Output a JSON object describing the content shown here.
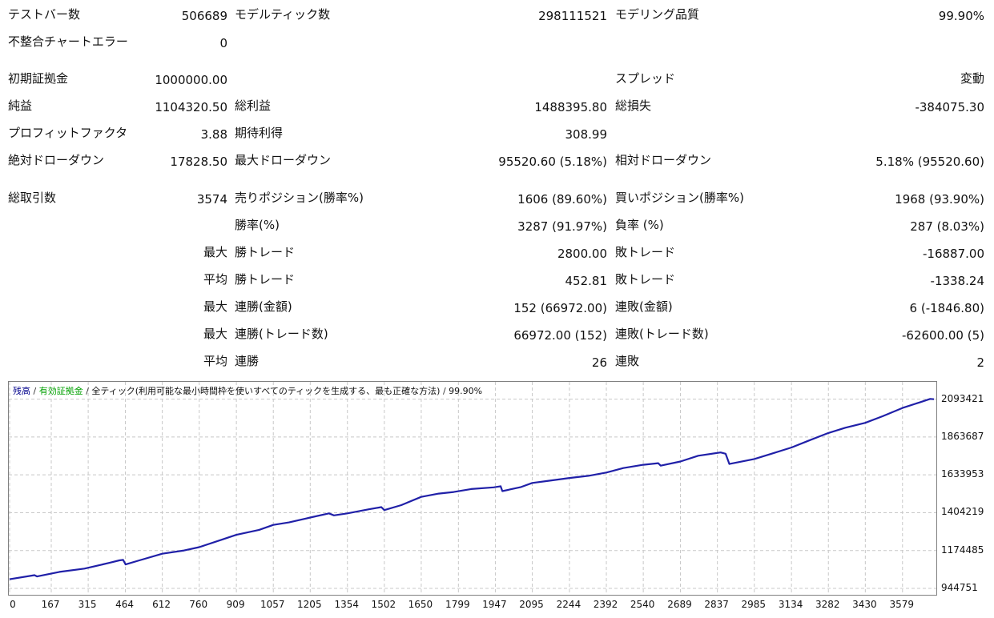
{
  "colors": {
    "balance_line": "#2020a8",
    "grid": "#c8c8c8",
    "legend_balance": "#00008b",
    "legend_equity": "#00a000"
  },
  "stats": {
    "test_bars": {
      "label": "テストバー数",
      "value": "506689"
    },
    "model_ticks": {
      "label": "モデルティック数",
      "value": "298111521"
    },
    "model_quality": {
      "label": "モデリング品質",
      "value": "99.90%"
    },
    "mismatch_errors": {
      "label": "不整合チャートエラー",
      "value": "0"
    },
    "initial_deposit": {
      "label": "初期証拠金",
      "value": "1000000.00"
    },
    "spread": {
      "label": "スプレッド",
      "value": "変動"
    },
    "net_profit": {
      "label": "純益",
      "value": "1104320.50"
    },
    "gross_profit": {
      "label": "総利益",
      "value": "1488395.80"
    },
    "gross_loss": {
      "label": "総損失",
      "value": "-384075.30"
    },
    "profit_factor": {
      "label": "プロフィットファクタ",
      "value": "3.88"
    },
    "expected_payoff": {
      "label": "期待利得",
      "value": "308.99"
    },
    "abs_drawdown": {
      "label": "絶対ドローダウン",
      "value": "17828.50"
    },
    "max_drawdown": {
      "label": "最大ドローダウン",
      "value": "95520.60 (5.18%)"
    },
    "rel_drawdown": {
      "label": "相対ドローダウン",
      "value": "5.18% (95520.60)"
    },
    "total_trades": {
      "label": "総取引数",
      "value": "3574"
    },
    "short_positions": {
      "label": "売りポジション(勝率%)",
      "value": "1606 (89.60%)"
    },
    "long_positions": {
      "label": "買いポジション(勝率%)",
      "value": "1968 (93.90%)"
    },
    "profit_trades": {
      "label": "勝率(%)",
      "value": "3287 (91.97%)"
    },
    "loss_trades": {
      "label": "負率 (%)",
      "value": "287 (8.03%)"
    },
    "largest_label": "最大",
    "largest_profit": {
      "label": "勝トレード",
      "value": "2800.00"
    },
    "largest_loss": {
      "label": "敗トレード",
      "value": "-16887.00"
    },
    "average_label": "平均",
    "average_profit": {
      "label": "勝トレード",
      "value": "452.81"
    },
    "average_loss": {
      "label": "敗トレード",
      "value": "-1338.24"
    },
    "max_label_1": "最大",
    "max_consec_wins_money": {
      "label": "連勝(金額)",
      "value": "152 (66972.00)"
    },
    "max_consec_losses_money": {
      "label": "連敗(金額)",
      "value": "6 (-1846.80)"
    },
    "max_label_2": "最大",
    "max_consec_wins_count": {
      "label": "連勝(トレード数)",
      "value": "66972.00 (152)"
    },
    "max_consec_losses_count": {
      "label": "連敗(トレード数)",
      "value": "-62600.00 (5)"
    },
    "avg_label_2": "平均",
    "avg_consec_wins": {
      "label": "連勝",
      "value": "26"
    },
    "avg_consec_losses": {
      "label": "連敗",
      "value": "2"
    }
  },
  "chart_legend": {
    "balance": "残高",
    "equity": "有効証拠金",
    "sep1": " / ",
    "model": "全ティック(利用可能な最小時間枠を使いすべてのティックを生成する、最も正確な方法)",
    "sep2": " / ",
    "quality": "99.90%"
  },
  "chart_data": {
    "type": "line",
    "title": "",
    "xlabel": "",
    "ylabel": "",
    "y_ticks": [
      "2093421",
      "1863687",
      "1633953",
      "1404219",
      "1174485",
      "944751"
    ],
    "x_ticks": [
      "0",
      "167",
      "315",
      "464",
      "612",
      "760",
      "909",
      "1057",
      "1205",
      "1354",
      "1502",
      "1650",
      "1799",
      "1947",
      "2095",
      "2244",
      "2392",
      "2540",
      "2689",
      "2837",
      "2985",
      "3134",
      "3282",
      "3430",
      "3579"
    ],
    "ylim": [
      944751,
      2150000
    ],
    "xlim": [
      0,
      3705
    ],
    "grid": true,
    "series": [
      {
        "values": [
          [
            0,
            1000000
          ],
          [
            100,
            1025000
          ],
          [
            110,
            1017000
          ],
          [
            200,
            1045000
          ],
          [
            300,
            1065000
          ],
          [
            400,
            1100000
          ],
          [
            440,
            1115000
          ],
          [
            455,
            1118000
          ],
          [
            465,
            1090000
          ],
          [
            520,
            1115000
          ],
          [
            612,
            1155000
          ],
          [
            700,
            1175000
          ],
          [
            760,
            1195000
          ],
          [
            850,
            1240000
          ],
          [
            909,
            1270000
          ],
          [
            1000,
            1300000
          ],
          [
            1057,
            1330000
          ],
          [
            1120,
            1345000
          ],
          [
            1205,
            1375000
          ],
          [
            1280,
            1400000
          ],
          [
            1300,
            1388000
          ],
          [
            1354,
            1400000
          ],
          [
            1440,
            1425000
          ],
          [
            1490,
            1438000
          ],
          [
            1502,
            1420000
          ],
          [
            1570,
            1450000
          ],
          [
            1650,
            1500000
          ],
          [
            1720,
            1520000
          ],
          [
            1780,
            1530000
          ],
          [
            1850,
            1548000
          ],
          [
            1940,
            1558000
          ],
          [
            1968,
            1565000
          ],
          [
            1975,
            1535000
          ],
          [
            2050,
            1560000
          ],
          [
            2095,
            1585000
          ],
          [
            2160,
            1598000
          ],
          [
            2244,
            1615000
          ],
          [
            2320,
            1628000
          ],
          [
            2392,
            1648000
          ],
          [
            2460,
            1675000
          ],
          [
            2540,
            1695000
          ],
          [
            2600,
            1705000
          ],
          [
            2610,
            1690000
          ],
          [
            2689,
            1715000
          ],
          [
            2760,
            1750000
          ],
          [
            2850,
            1770000
          ],
          [
            2870,
            1762000
          ],
          [
            2885,
            1700000
          ],
          [
            2985,
            1730000
          ],
          [
            3050,
            1760000
          ],
          [
            3134,
            1800000
          ],
          [
            3200,
            1840000
          ],
          [
            3282,
            1888000
          ],
          [
            3350,
            1920000
          ],
          [
            3430,
            1950000
          ],
          [
            3500,
            1990000
          ],
          [
            3579,
            2040000
          ],
          [
            3650,
            2075000
          ],
          [
            3690,
            2095000
          ],
          [
            3705,
            2093000
          ]
        ]
      }
    ]
  }
}
